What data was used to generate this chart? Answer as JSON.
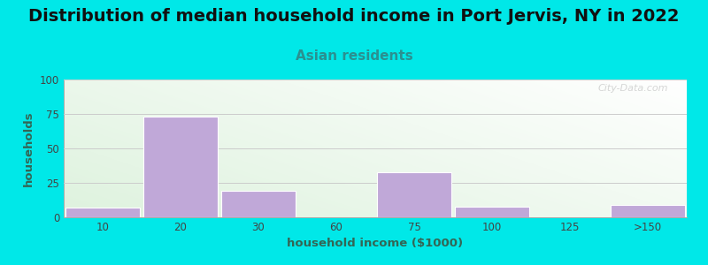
{
  "title": "Distribution of median household income in Port Jervis, NY in 2022",
  "subtitle": "Asian residents",
  "xlabel": "household income ($1000)",
  "ylabel": "households",
  "categories": [
    "10",
    "20",
    "30",
    "60",
    "75",
    "100",
    "125",
    ">150"
  ],
  "values": [
    7,
    73,
    19,
    0,
    33,
    8,
    0,
    9
  ],
  "bar_color": "#c0a8d8",
  "bar_edge_color": "#ffffff",
  "ylim": [
    0,
    100
  ],
  "yticks": [
    0,
    25,
    50,
    75,
    100
  ],
  "title_fontsize": 14,
  "subtitle_fontsize": 11,
  "subtitle_color": "#2a9090",
  "ylabel_color": "#336655",
  "xlabel_color": "#336655",
  "outer_bg": "#00e8e8",
  "watermark": "City-Data.com",
  "title_fontweight": "bold",
  "tick_label_color": "#444444",
  "grid_color": "#cccccc"
}
